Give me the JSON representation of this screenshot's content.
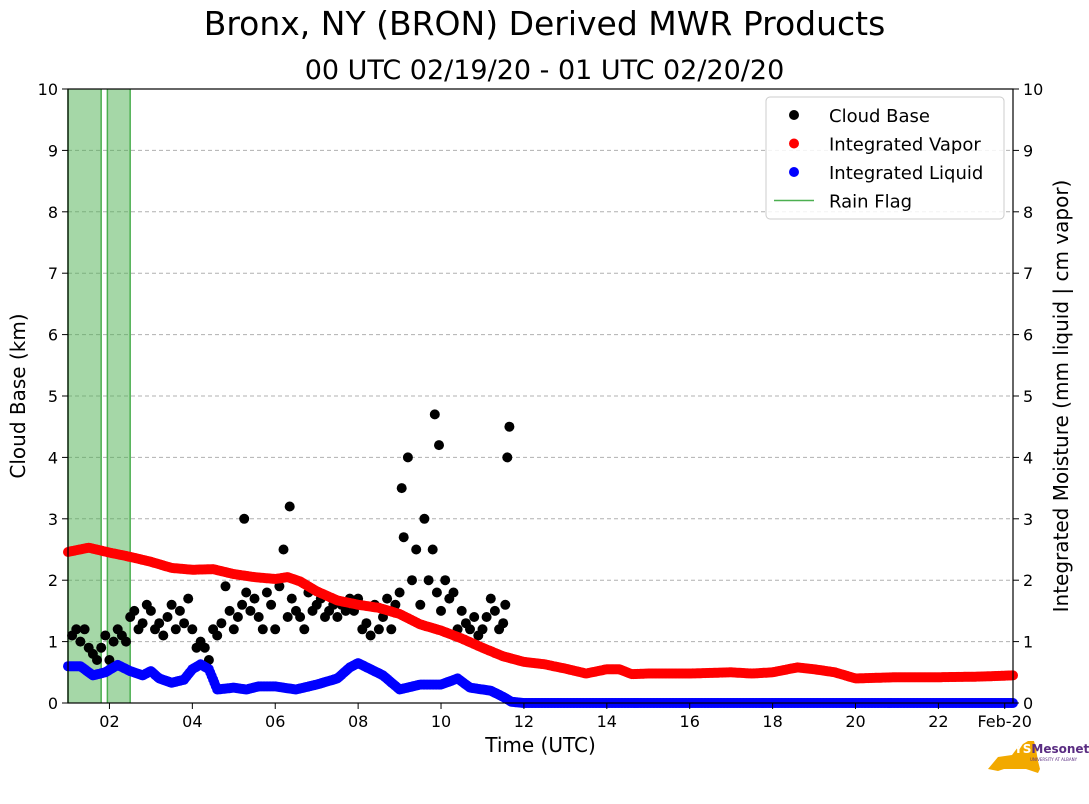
{
  "header": {
    "title": "Bronx, NY (BRON) Derived MWR Products",
    "subtitle": "00 UTC 02/19/20 - 01 UTC 02/20/20"
  },
  "logo": {
    "nys_text": "NYS",
    "mesonet_text": "Mesonet",
    "university_text": "UNIVERSITY AT ALBANY",
    "color_purple": "#5a2d82",
    "color_gold": "#f2a900"
  },
  "chart_data": {
    "type": "scatter",
    "title": "Bronx, NY (BRON) Derived MWR Products",
    "subtitle": "00 UTC 02/19/20 - 01 UTC 02/20/20",
    "xlabel": "Time (UTC)",
    "ylabel_left": "Cloud Base (km)",
    "ylabel_right": "Integrated Moisture (mm liquid | cm vapor)",
    "xlim": [
      1.0,
      23.8
    ],
    "ylim": [
      0,
      10
    ],
    "x_tick_values": [
      2,
      4,
      6,
      8,
      10,
      12,
      14,
      16,
      18,
      20,
      22,
      23.6
    ],
    "x_tick_labels": [
      "02",
      "04",
      "06",
      "08",
      "10",
      "12",
      "14",
      "16",
      "18",
      "20",
      "22",
      "Feb-20"
    ],
    "y_ticks": [
      0,
      1,
      2,
      3,
      4,
      5,
      6,
      7,
      8,
      9,
      10
    ],
    "grid": "horizontal dashed",
    "legend_position": "top-right",
    "legend": [
      {
        "label": "Cloud Base",
        "kind": "dot",
        "color": "#000000"
      },
      {
        "label": "Integrated Vapor",
        "kind": "dot",
        "color": "#ff0000"
      },
      {
        "label": "Integrated Liquid",
        "kind": "dot",
        "color": "#0000ff"
      },
      {
        "label": "Rain Flag",
        "kind": "line",
        "color": "#4caf50"
      }
    ],
    "rain_flag_spans": [
      [
        1.0,
        1.8
      ],
      [
        1.95,
        2.5
      ]
    ],
    "series": [
      {
        "name": "Cloud Base",
        "color": "#000000",
        "style": "sparse",
        "points": [
          [
            1.1,
            1.1
          ],
          [
            1.2,
            1.2
          ],
          [
            1.3,
            1.0
          ],
          [
            1.4,
            1.2
          ],
          [
            1.5,
            0.9
          ],
          [
            1.6,
            0.8
          ],
          [
            1.7,
            0.7
          ],
          [
            1.8,
            0.9
          ],
          [
            1.9,
            1.1
          ],
          [
            2.0,
            0.7
          ],
          [
            2.1,
            1.0
          ],
          [
            2.2,
            1.2
          ],
          [
            2.3,
            1.1
          ],
          [
            2.4,
            1.0
          ],
          [
            2.5,
            1.4
          ],
          [
            2.6,
            1.5
          ],
          [
            2.7,
            1.2
          ],
          [
            2.8,
            1.3
          ],
          [
            2.9,
            1.6
          ],
          [
            3.0,
            1.5
          ],
          [
            3.1,
            1.2
          ],
          [
            3.2,
            1.3
          ],
          [
            3.3,
            1.1
          ],
          [
            3.4,
            1.4
          ],
          [
            3.5,
            1.6
          ],
          [
            3.6,
            1.2
          ],
          [
            3.7,
            1.5
          ],
          [
            3.8,
            1.3
          ],
          [
            3.9,
            1.7
          ],
          [
            4.0,
            1.2
          ],
          [
            4.1,
            0.9
          ],
          [
            4.2,
            1.0
          ],
          [
            4.3,
            0.9
          ],
          [
            4.4,
            0.7
          ],
          [
            4.5,
            1.2
          ],
          [
            4.6,
            1.1
          ],
          [
            4.7,
            1.3
          ],
          [
            4.8,
            1.9
          ],
          [
            4.9,
            1.5
          ],
          [
            5.0,
            1.2
          ],
          [
            5.1,
            1.4
          ],
          [
            5.2,
            1.6
          ],
          [
            5.3,
            1.8
          ],
          [
            5.4,
            1.5
          ],
          [
            5.5,
            1.7
          ],
          [
            5.6,
            1.4
          ],
          [
            5.7,
            1.2
          ],
          [
            5.8,
            1.8
          ],
          [
            5.9,
            1.6
          ],
          [
            6.0,
            1.2
          ],
          [
            6.1,
            1.9
          ],
          [
            6.2,
            2.5
          ],
          [
            6.3,
            1.4
          ],
          [
            6.4,
            1.7
          ],
          [
            6.5,
            1.5
          ],
          [
            6.6,
            1.4
          ],
          [
            6.7,
            1.2
          ],
          [
            6.8,
            1.8
          ],
          [
            6.9,
            1.5
          ],
          [
            7.0,
            1.6
          ],
          [
            7.1,
            1.7
          ],
          [
            7.2,
            1.4
          ],
          [
            7.3,
            1.5
          ],
          [
            7.4,
            1.6
          ],
          [
            7.5,
            1.4
          ],
          [
            7.6,
            1.6
          ],
          [
            7.7,
            1.5
          ],
          [
            7.8,
            1.7
          ],
          [
            7.9,
            1.5
          ],
          [
            8.0,
            1.7
          ],
          [
            8.1,
            1.2
          ],
          [
            8.2,
            1.3
          ],
          [
            8.3,
            1.1
          ],
          [
            8.4,
            1.6
          ],
          [
            8.5,
            1.2
          ],
          [
            8.6,
            1.4
          ],
          [
            8.7,
            1.7
          ],
          [
            8.8,
            1.2
          ],
          [
            8.9,
            1.6
          ],
          [
            9.0,
            1.8
          ],
          [
            9.05,
            3.5
          ],
          [
            9.1,
            2.7
          ],
          [
            9.2,
            4.0
          ],
          [
            9.3,
            2.0
          ],
          [
            9.4,
            2.5
          ],
          [
            9.5,
            1.6
          ],
          [
            9.6,
            3.0
          ],
          [
            9.7,
            2.0
          ],
          [
            9.8,
            2.5
          ],
          [
            9.85,
            4.7
          ],
          [
            9.9,
            1.8
          ],
          [
            9.95,
            4.2
          ],
          [
            10.0,
            1.5
          ],
          [
            10.1,
            2.0
          ],
          [
            10.2,
            1.7
          ],
          [
            10.3,
            1.8
          ],
          [
            10.4,
            1.2
          ],
          [
            10.5,
            1.5
          ],
          [
            10.6,
            1.3
          ],
          [
            10.7,
            1.2
          ],
          [
            10.8,
            1.4
          ],
          [
            10.9,
            1.1
          ],
          [
            11.0,
            1.2
          ],
          [
            11.1,
            1.4
          ],
          [
            11.2,
            1.7
          ],
          [
            11.3,
            1.5
          ],
          [
            11.4,
            1.2
          ],
          [
            11.5,
            1.3
          ],
          [
            11.55,
            1.6
          ],
          [
            11.6,
            4.0
          ],
          [
            11.65,
            4.5
          ],
          [
            5.25,
            3.0
          ],
          [
            6.35,
            3.2
          ]
        ]
      },
      {
        "name": "Integrated Vapor",
        "color": "#ff0000",
        "style": "dense",
        "points": [
          [
            1.0,
            2.46
          ],
          [
            1.5,
            2.53
          ],
          [
            2.0,
            2.45
          ],
          [
            2.5,
            2.38
          ],
          [
            3.0,
            2.3
          ],
          [
            3.5,
            2.2
          ],
          [
            4.0,
            2.17
          ],
          [
            4.5,
            2.18
          ],
          [
            5.0,
            2.1
          ],
          [
            5.5,
            2.05
          ],
          [
            6.0,
            2.02
          ],
          [
            6.3,
            2.05
          ],
          [
            6.6,
            1.98
          ],
          [
            7.0,
            1.82
          ],
          [
            7.5,
            1.67
          ],
          [
            8.0,
            1.6
          ],
          [
            8.5,
            1.55
          ],
          [
            9.0,
            1.45
          ],
          [
            9.5,
            1.28
          ],
          [
            10.0,
            1.18
          ],
          [
            10.5,
            1.05
          ],
          [
            11.0,
            0.9
          ],
          [
            11.5,
            0.76
          ],
          [
            12.0,
            0.67
          ],
          [
            12.5,
            0.63
          ],
          [
            13.0,
            0.56
          ],
          [
            13.5,
            0.48
          ],
          [
            14.0,
            0.55
          ],
          [
            14.3,
            0.55
          ],
          [
            14.6,
            0.47
          ],
          [
            15.0,
            0.48
          ],
          [
            16.0,
            0.48
          ],
          [
            17.0,
            0.5
          ],
          [
            17.5,
            0.48
          ],
          [
            18.0,
            0.5
          ],
          [
            18.6,
            0.58
          ],
          [
            19.0,
            0.55
          ],
          [
            19.5,
            0.5
          ],
          [
            20.0,
            0.4
          ],
          [
            21.0,
            0.42
          ],
          [
            22.0,
            0.42
          ],
          [
            23.0,
            0.43
          ],
          [
            23.8,
            0.45
          ]
        ]
      },
      {
        "name": "Integrated Liquid",
        "color": "#0000ff",
        "style": "dense",
        "points": [
          [
            1.0,
            0.6
          ],
          [
            1.3,
            0.6
          ],
          [
            1.6,
            0.45
          ],
          [
            1.9,
            0.5
          ],
          [
            2.2,
            0.62
          ],
          [
            2.5,
            0.52
          ],
          [
            2.8,
            0.45
          ],
          [
            3.0,
            0.52
          ],
          [
            3.2,
            0.4
          ],
          [
            3.5,
            0.33
          ],
          [
            3.8,
            0.38
          ],
          [
            4.0,
            0.55
          ],
          [
            4.2,
            0.63
          ],
          [
            4.4,
            0.55
          ],
          [
            4.6,
            0.22
          ],
          [
            5.0,
            0.25
          ],
          [
            5.3,
            0.22
          ],
          [
            5.6,
            0.27
          ],
          [
            6.0,
            0.27
          ],
          [
            6.5,
            0.22
          ],
          [
            7.0,
            0.3
          ],
          [
            7.5,
            0.4
          ],
          [
            7.8,
            0.58
          ],
          [
            8.0,
            0.65
          ],
          [
            8.3,
            0.55
          ],
          [
            8.6,
            0.45
          ],
          [
            9.0,
            0.22
          ],
          [
            9.5,
            0.3
          ],
          [
            10.0,
            0.3
          ],
          [
            10.4,
            0.4
          ],
          [
            10.7,
            0.25
          ],
          [
            11.2,
            0.2
          ],
          [
            11.5,
            0.1
          ],
          [
            11.7,
            0.02
          ],
          [
            12.0,
            0.0
          ],
          [
            16.0,
            0.0
          ],
          [
            20.0,
            0.0
          ],
          [
            23.8,
            0.0
          ]
        ]
      }
    ]
  }
}
